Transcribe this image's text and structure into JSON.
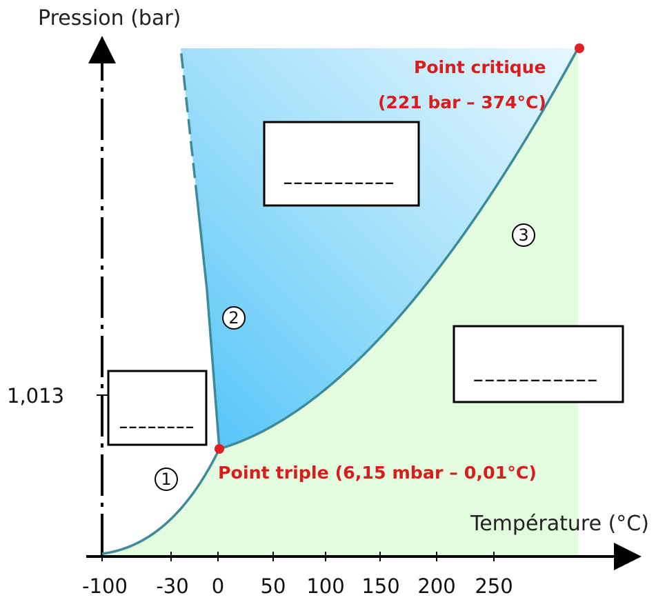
{
  "axes": {
    "y_label": "Pression (bar)",
    "x_label": "Température (°C)",
    "y_tick": "1,013",
    "x_ticks": [
      "-100",
      "-30",
      "0",
      "50",
      "100",
      "150",
      "200",
      "250"
    ]
  },
  "points": {
    "critical_title": "Point critique",
    "critical_values": "(221 bar – 374°C)",
    "triple": "Point triple (6,15 mbar – 0,01°C)"
  },
  "curve_numbers": [
    "1",
    "2",
    "3"
  ],
  "boxes": {
    "solid": "--------",
    "liquid": "-----------",
    "gas": "-----------"
  },
  "colors": {
    "liquid_fill": "#5cc8f5",
    "gas_fill": "#e3fbdf",
    "curve": "#3d8a9a",
    "point": "#e02020",
    "label": "#d91c1c"
  }
}
